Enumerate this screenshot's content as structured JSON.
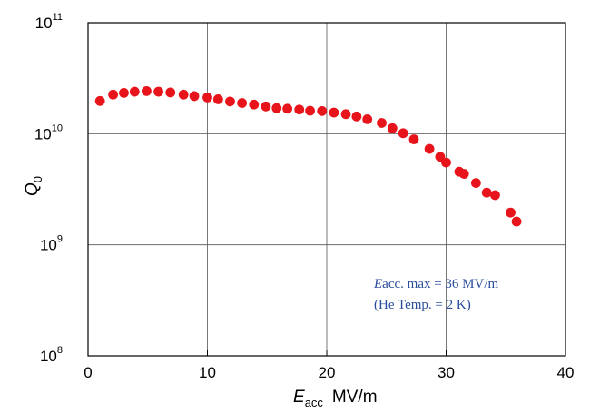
{
  "chart_data": {
    "type": "scatter",
    "title": "",
    "xlabel": {
      "main": "E",
      "sub": "acc",
      "unit": "MV/m"
    },
    "ylabel": {
      "main": "Q",
      "sub": "0"
    },
    "xlim": [
      0,
      40
    ],
    "ylim": [
      100000000,
      100000000000
    ],
    "yscale": "log",
    "x_ticks": [
      "0",
      "10",
      "20",
      "30",
      "40"
    ],
    "y_ticks": [
      {
        "base": "10",
        "exp": "8",
        "value": 100000000
      },
      {
        "base": "10",
        "exp": "9",
        "value": 1000000000
      },
      {
        "base": "10",
        "exp": "10",
        "value": 10000000000
      },
      {
        "base": "10",
        "exp": "11",
        "value": 100000000000
      }
    ],
    "grid": true,
    "marker_color": "#e8141b",
    "annotation_color": "#2a4d9b",
    "annotation": {
      "line1_italic": "E",
      "line1_rest": "acc. max = 36 MV/m",
      "line2": "(He Temp. = 2 K)"
    },
    "series": [
      {
        "points": [
          [
            1.0,
            19700000000.0
          ],
          [
            2.1,
            22500000000.0
          ],
          [
            3.0,
            23300000000.0
          ],
          [
            3.9,
            23900000000.0
          ],
          [
            4.9,
            24200000000.0
          ],
          [
            5.9,
            23900000000.0
          ],
          [
            6.9,
            23500000000.0
          ],
          [
            8.0,
            22500000000.0
          ],
          [
            8.9,
            21800000000.0
          ],
          [
            10.0,
            21200000000.0
          ],
          [
            10.9,
            20400000000.0
          ],
          [
            11.9,
            19500000000.0
          ],
          [
            12.9,
            18900000000.0
          ],
          [
            13.9,
            18300000000.0
          ],
          [
            14.9,
            17600000000.0
          ],
          [
            15.8,
            17000000000.0
          ],
          [
            16.7,
            16800000000.0
          ],
          [
            17.7,
            16500000000.0
          ],
          [
            18.6,
            16100000000.0
          ],
          [
            19.6,
            16000000000.0
          ],
          [
            20.6,
            15500000000.0
          ],
          [
            21.6,
            15000000000.0
          ],
          [
            22.5,
            14300000000.0
          ],
          [
            23.4,
            13500000000.0
          ],
          [
            24.6,
            12500000000.0
          ],
          [
            25.5,
            11200000000.0
          ],
          [
            26.4,
            10100000000.0
          ],
          [
            27.3,
            8900000000.0
          ],
          [
            28.6,
            7300000000.0
          ],
          [
            29.5,
            6200000000.0
          ],
          [
            30.0,
            5500000000.0
          ],
          [
            31.1,
            4550000000.0
          ],
          [
            31.5,
            4350000000.0
          ],
          [
            32.5,
            3600000000.0
          ],
          [
            33.4,
            2950000000.0
          ],
          [
            34.1,
            2800000000.0
          ],
          [
            35.4,
            1950000000.0
          ],
          [
            35.9,
            1620000000.0
          ]
        ]
      }
    ]
  }
}
